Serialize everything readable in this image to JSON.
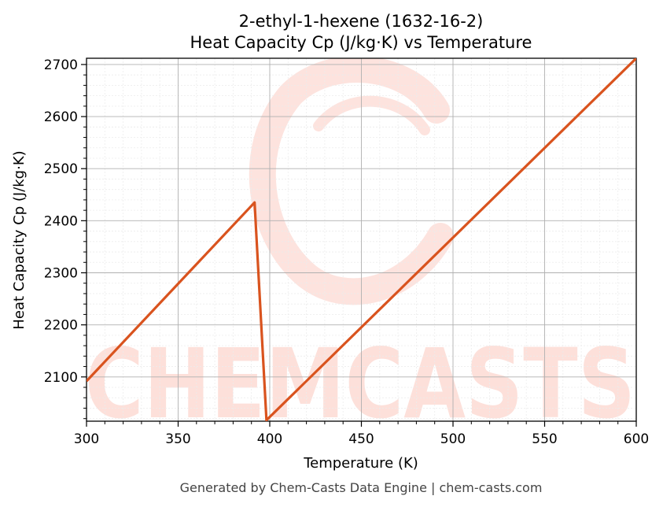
{
  "chart_data": {
    "type": "line",
    "title_line1": "2-ethyl-1-hexene (1632-16-2)",
    "title_line2": "Heat Capacity Cp (J/kg·K) vs Temperature",
    "xlabel": "Temperature (K)",
    "ylabel": "Heat Capacity Cp (J/kg·K)",
    "xlim": [
      300,
      600
    ],
    "ylim": [
      2015,
      2712
    ],
    "x_ticks": [
      300,
      350,
      400,
      450,
      500,
      550,
      600
    ],
    "y_ticks": [
      2100,
      2200,
      2300,
      2400,
      2500,
      2600,
      2700
    ],
    "grid": true,
    "series": [
      {
        "color": "#d9531e",
        "points": [
          [
            300,
            2092
          ],
          [
            391.7,
            2435
          ],
          [
            398.2,
            2017
          ],
          [
            600,
            2712
          ]
        ]
      }
    ]
  },
  "watermark": {
    "text": "CHEMCASTS",
    "color": "#fde0da"
  },
  "footer": "Generated by Chem-Casts Data Engine | chem-casts.com"
}
